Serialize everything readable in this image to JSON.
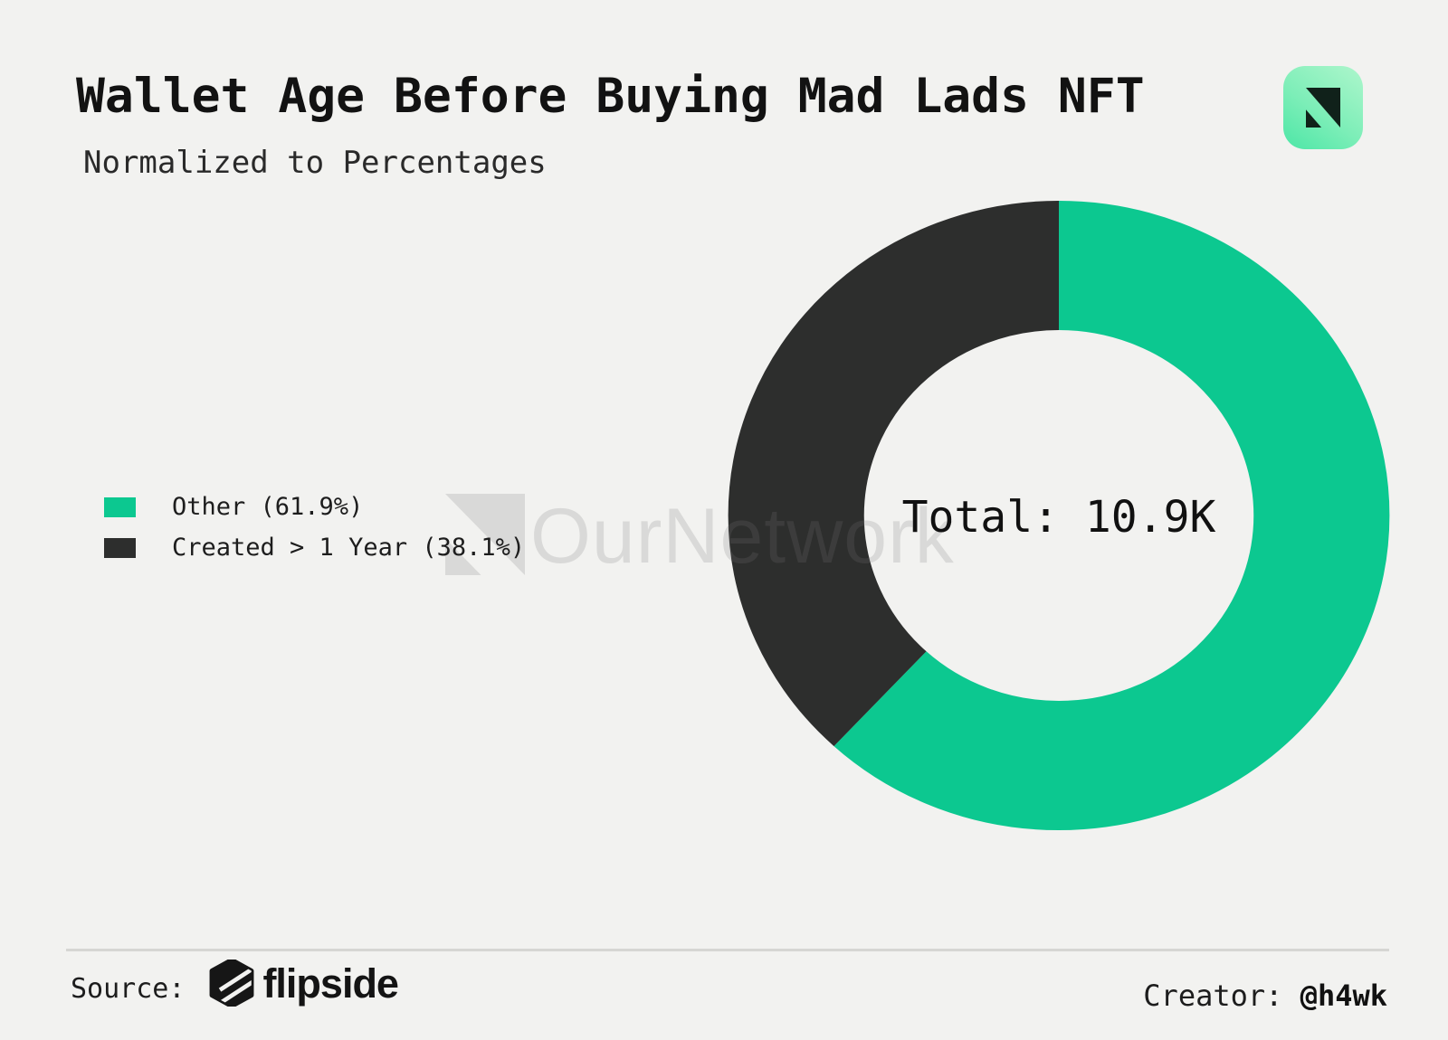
{
  "page": {
    "background": "#f2f2f0"
  },
  "header": {
    "title": "Wallet Age Before Buying Mad Lads NFT",
    "subtitle": "Normalized to Percentages"
  },
  "brand_icon": {
    "name": "ournetwork-logo",
    "gradient_start": "#aef6cc",
    "gradient_end": "#4ce6a6",
    "glyph_color": "#10211a"
  },
  "watermark": {
    "text": "OurNetwork",
    "color": "rgba(120,120,120,0.20)"
  },
  "chart_data": {
    "type": "pie",
    "subtype": "donut",
    "title": "Wallet Age Before Buying Mad Lads NFT",
    "subtitle": "Normalized to Percentages",
    "center_label": "Total: 10.9K",
    "total_value": "10.9K",
    "start_angle_deg": 0,
    "direction": "clockwise",
    "hole_ratio": 0.59,
    "slices": [
      {
        "label": "Other",
        "pct": 61.9,
        "color": "#0cc890"
      },
      {
        "label": "Created > 1 Year",
        "pct": 38.1,
        "color": "#2d2e2d"
      }
    ],
    "legend_position": "left"
  },
  "legend": {
    "items": [
      {
        "label": "Other (61.9%)",
        "color": "#0cc890"
      },
      {
        "label": "Created > 1 Year (38.1%)",
        "color": "#2d2e2d"
      }
    ]
  },
  "footer": {
    "source_label": "Source:",
    "source_name": "flipside",
    "creator_label": "Creator:",
    "creator_handle": "@h4wk"
  }
}
